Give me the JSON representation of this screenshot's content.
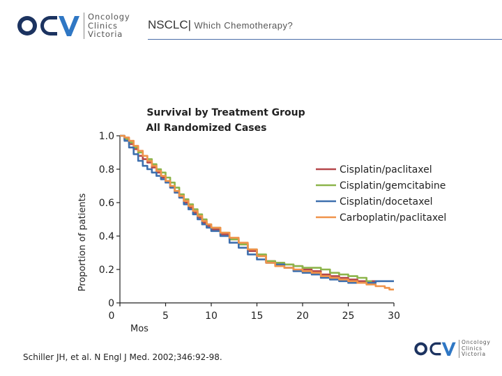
{
  "header": {
    "title": "NSCLC|",
    "subtitle": "Which Chemotherapy?"
  },
  "logo": {
    "mark": "OCV",
    "words": [
      "Oncology",
      "Clinics",
      "Victoria"
    ],
    "colors": {
      "dark": "#1c3360",
      "accent": "#2f77c4"
    }
  },
  "citation": "Schiller JH, et al. N Engl J Med. 2002;346:92-98.",
  "chart_data": {
    "type": "line",
    "title": "Survival by Treatment Group",
    "subtitle": "All Randomized Cases",
    "xlabel": "Mos",
    "ylabel": "Proportion of patients",
    "xlim": [
      0,
      30
    ],
    "ylim": [
      0,
      1.0
    ],
    "x_ticks": [
      0,
      5,
      10,
      15,
      20,
      25,
      30
    ],
    "x_tick_labels": [
      "0",
      "5",
      "10",
      "15",
      "20",
      "25",
      "30"
    ],
    "y_ticks": [
      0,
      0.2,
      0.4,
      0.6,
      0.8,
      1.0
    ],
    "y_tick_labels": [
      "0",
      "0.2",
      "0.4",
      "0.6",
      "0.8",
      "1.0"
    ],
    "grid": false,
    "legend_position": "top-right",
    "series": [
      {
        "name": "Cisplatin/paclitaxel",
        "color": "#b5474a",
        "points": [
          [
            0,
            1.0
          ],
          [
            0.5,
            0.98
          ],
          [
            1,
            0.95
          ],
          [
            1.5,
            0.92
          ],
          [
            2,
            0.88
          ],
          [
            2.5,
            0.86
          ],
          [
            3,
            0.84
          ],
          [
            3.5,
            0.81
          ],
          [
            4,
            0.78
          ],
          [
            4.5,
            0.75
          ],
          [
            5,
            0.72
          ],
          [
            5.5,
            0.69
          ],
          [
            6,
            0.66
          ],
          [
            6.5,
            0.63
          ],
          [
            7,
            0.6
          ],
          [
            7.5,
            0.57
          ],
          [
            8,
            0.54
          ],
          [
            8.5,
            0.51
          ],
          [
            9,
            0.48
          ],
          [
            9.5,
            0.46
          ],
          [
            10,
            0.44
          ],
          [
            11,
            0.41
          ],
          [
            12,
            0.38
          ],
          [
            13,
            0.35
          ],
          [
            14,
            0.31
          ],
          [
            15,
            0.28
          ],
          [
            16,
            0.25
          ],
          [
            17,
            0.24
          ],
          [
            18,
            0.23
          ],
          [
            19,
            0.22
          ],
          [
            20,
            0.2
          ],
          [
            21,
            0.19
          ],
          [
            22,
            0.17
          ],
          [
            23,
            0.16
          ],
          [
            24,
            0.15
          ],
          [
            25,
            0.14
          ],
          [
            26,
            0.13
          ],
          [
            27,
            0.13
          ],
          [
            28,
            0.13
          ],
          [
            28.5,
            0.13
          ]
        ]
      },
      {
        "name": "Cisplatin/gemcitabine",
        "color": "#8cb44a",
        "points": [
          [
            0,
            1.0
          ],
          [
            0.5,
            0.98
          ],
          [
            1,
            0.96
          ],
          [
            1.5,
            0.93
          ],
          [
            2,
            0.9
          ],
          [
            2.5,
            0.88
          ],
          [
            3,
            0.86
          ],
          [
            3.5,
            0.83
          ],
          [
            4,
            0.8
          ],
          [
            4.5,
            0.78
          ],
          [
            5,
            0.75
          ],
          [
            5.5,
            0.72
          ],
          [
            6,
            0.69
          ],
          [
            6.5,
            0.65
          ],
          [
            7,
            0.62
          ],
          [
            7.5,
            0.59
          ],
          [
            8,
            0.56
          ],
          [
            8.5,
            0.53
          ],
          [
            9,
            0.5
          ],
          [
            9.5,
            0.47
          ],
          [
            10,
            0.45
          ],
          [
            11,
            0.42
          ],
          [
            12,
            0.38
          ],
          [
            13,
            0.35
          ],
          [
            14,
            0.32
          ],
          [
            15,
            0.29
          ],
          [
            16,
            0.25
          ],
          [
            17,
            0.24
          ],
          [
            18,
            0.23
          ],
          [
            19,
            0.22
          ],
          [
            20,
            0.21
          ],
          [
            21,
            0.21
          ],
          [
            22,
            0.2
          ],
          [
            23,
            0.18
          ],
          [
            24,
            0.17
          ],
          [
            25,
            0.16
          ],
          [
            26,
            0.15
          ],
          [
            27,
            0.13
          ],
          [
            27.5,
            0.12
          ]
        ]
      },
      {
        "name": "Cisplatin/docetaxel",
        "color": "#3d6fae",
        "points": [
          [
            0,
            1.0
          ],
          [
            0.5,
            0.97
          ],
          [
            1,
            0.93
          ],
          [
            1.5,
            0.89
          ],
          [
            2,
            0.85
          ],
          [
            2.5,
            0.82
          ],
          [
            3,
            0.8
          ],
          [
            3.5,
            0.78
          ],
          [
            4,
            0.76
          ],
          [
            4.5,
            0.74
          ],
          [
            5,
            0.72
          ],
          [
            5.5,
            0.69
          ],
          [
            6,
            0.66
          ],
          [
            6.5,
            0.63
          ],
          [
            7,
            0.59
          ],
          [
            7.5,
            0.56
          ],
          [
            8,
            0.53
          ],
          [
            8.5,
            0.5
          ],
          [
            9,
            0.47
          ],
          [
            9.5,
            0.45
          ],
          [
            10,
            0.43
          ],
          [
            11,
            0.4
          ],
          [
            12,
            0.36
          ],
          [
            13,
            0.33
          ],
          [
            14,
            0.29
          ],
          [
            15,
            0.26
          ],
          [
            16,
            0.24
          ],
          [
            17,
            0.23
          ],
          [
            18,
            0.21
          ],
          [
            19,
            0.19
          ],
          [
            20,
            0.18
          ],
          [
            21,
            0.17
          ],
          [
            22,
            0.15
          ],
          [
            23,
            0.14
          ],
          [
            24,
            0.13
          ],
          [
            25,
            0.12
          ],
          [
            26,
            0.12
          ],
          [
            27,
            0.12
          ],
          [
            28,
            0.13
          ],
          [
            30,
            0.13
          ]
        ]
      },
      {
        "name": "Carboplatin/paclitaxel",
        "color": "#f0934a",
        "points": [
          [
            0,
            1.0
          ],
          [
            0.5,
            0.99
          ],
          [
            1,
            0.97
          ],
          [
            1.5,
            0.94
          ],
          [
            2,
            0.91
          ],
          [
            2.5,
            0.88
          ],
          [
            3,
            0.85
          ],
          [
            3.5,
            0.82
          ],
          [
            4,
            0.79
          ],
          [
            4.5,
            0.76
          ],
          [
            5,
            0.73
          ],
          [
            5.5,
            0.7
          ],
          [
            6,
            0.67
          ],
          [
            6.5,
            0.64
          ],
          [
            7,
            0.61
          ],
          [
            7.5,
            0.58
          ],
          [
            8,
            0.55
          ],
          [
            8.5,
            0.52
          ],
          [
            9,
            0.49
          ],
          [
            9.5,
            0.47
          ],
          [
            10,
            0.45
          ],
          [
            11,
            0.42
          ],
          [
            12,
            0.39
          ],
          [
            13,
            0.36
          ],
          [
            14,
            0.32
          ],
          [
            15,
            0.28
          ],
          [
            16,
            0.24
          ],
          [
            17,
            0.22
          ],
          [
            18,
            0.21
          ],
          [
            19,
            0.2
          ],
          [
            20,
            0.19
          ],
          [
            21,
            0.18
          ],
          [
            22,
            0.16
          ],
          [
            23,
            0.15
          ],
          [
            24,
            0.14
          ],
          [
            25,
            0.13
          ],
          [
            26,
            0.12
          ],
          [
            27,
            0.11
          ],
          [
            28,
            0.1
          ],
          [
            29,
            0.09
          ],
          [
            29.5,
            0.08
          ],
          [
            30,
            0.08
          ]
        ]
      }
    ]
  }
}
